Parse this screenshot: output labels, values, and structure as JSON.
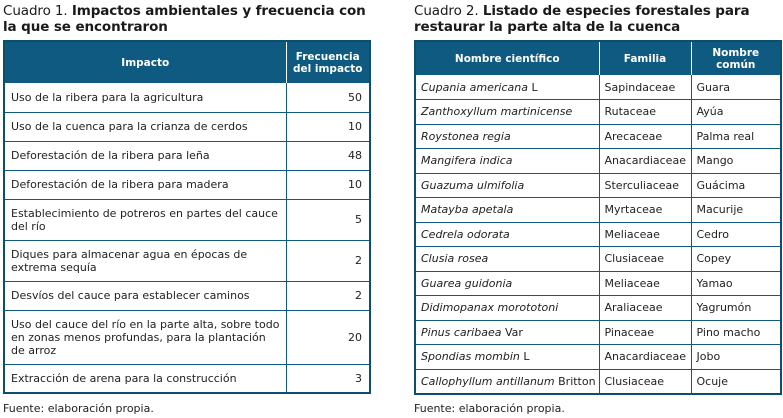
{
  "table1": {
    "caption_prefix": "Cuadro 1.",
    "caption_title": "Impactos ambientales y frecuencia con la que se encontraron",
    "headers": {
      "impact": "Impacto",
      "frequency": "Frecuencia del impacto"
    },
    "rows": [
      {
        "impact": "Uso de la ribera para la agricultura",
        "frequency": "50"
      },
      {
        "impact": "Uso de la cuenca para la crianza de cerdos",
        "frequency": "10"
      },
      {
        "impact": "Deforestación de la ribera para leña",
        "frequency": "48"
      },
      {
        "impact": "Deforestación de la ribera para madera",
        "frequency": "10"
      },
      {
        "impact": "Establecimiento de potreros en partes del cauce del río",
        "frequency": "5"
      },
      {
        "impact": "Diques para almacenar agua en épocas de extrema sequía",
        "frequency": "2"
      },
      {
        "impact": "Desvíos del cauce para establecer caminos",
        "frequency": "2"
      },
      {
        "impact": "Uso del cauce del río en la parte alta, sobre todo en zonas menos profundas, para la plantación de arroz",
        "frequency": "20"
      },
      {
        "impact": "Extracción de arena para la construcción",
        "frequency": "3"
      }
    ],
    "source": "Fuente: elaboración propia."
  },
  "table2": {
    "caption_prefix": "Cuadro 2.",
    "caption_title": "Listado de especies forestales para restaurar la parte alta de la cuenca",
    "headers": {
      "scientific": "Nombre científico",
      "family": "Familia",
      "common": "Nombre común"
    },
    "rows": [
      {
        "scientific": "Cupania americana",
        "author": " L",
        "family": "Sapindaceae",
        "common": "Guara"
      },
      {
        "scientific": "Zanthoxyllum martinicense",
        "author": "",
        "family": "Rutaceae",
        "common": "Ayúa"
      },
      {
        "scientific": "Roystonea regia",
        "author": "",
        "family": "Arecaceae",
        "common": "Palma real"
      },
      {
        "scientific": "Mangifera indica",
        "author": "",
        "family": "Anacardiaceae",
        "common": "Mango"
      },
      {
        "scientific": "Guazuma ulmifolia",
        "author": "",
        "family": "Sterculiaceae",
        "common": "Guácima"
      },
      {
        "scientific": "Matayba apetala",
        "author": "",
        "family": "Myrtaceae",
        "common": "Macurije"
      },
      {
        "scientific": "Cedrela odorata",
        "author": "",
        "family": "Meliaceae",
        "common": "Cedro"
      },
      {
        "scientific": "Clusia rosea",
        "author": "",
        "family": "Clusiaceae",
        "common": "Copey"
      },
      {
        "scientific": "Guarea guidonia",
        "author": "",
        "family": "Meliaceae",
        "common": "Yamao"
      },
      {
        "scientific": "Didimopanax morototoni",
        "author": "",
        "family": "Araliaceae",
        "common": "Yagrumón"
      },
      {
        "scientific": "Pinus caribaea",
        "author": " Var",
        "family": "Pinaceae",
        "common": "Pino macho"
      },
      {
        "scientific": "Spondias mombin",
        "author": " L",
        "family": "Anacardiaceae",
        "common": "Jobo"
      },
      {
        "scientific": "Callophyllum antillanum",
        "author": " Britton",
        "family": "Clusiaceae",
        "common": "Ocuje"
      }
    ],
    "source": "Fuente: elaboración propia."
  },
  "colors": {
    "header_bg": "#0f5a80",
    "border": "#0d4d6e",
    "header_text": "#ffffff"
  }
}
